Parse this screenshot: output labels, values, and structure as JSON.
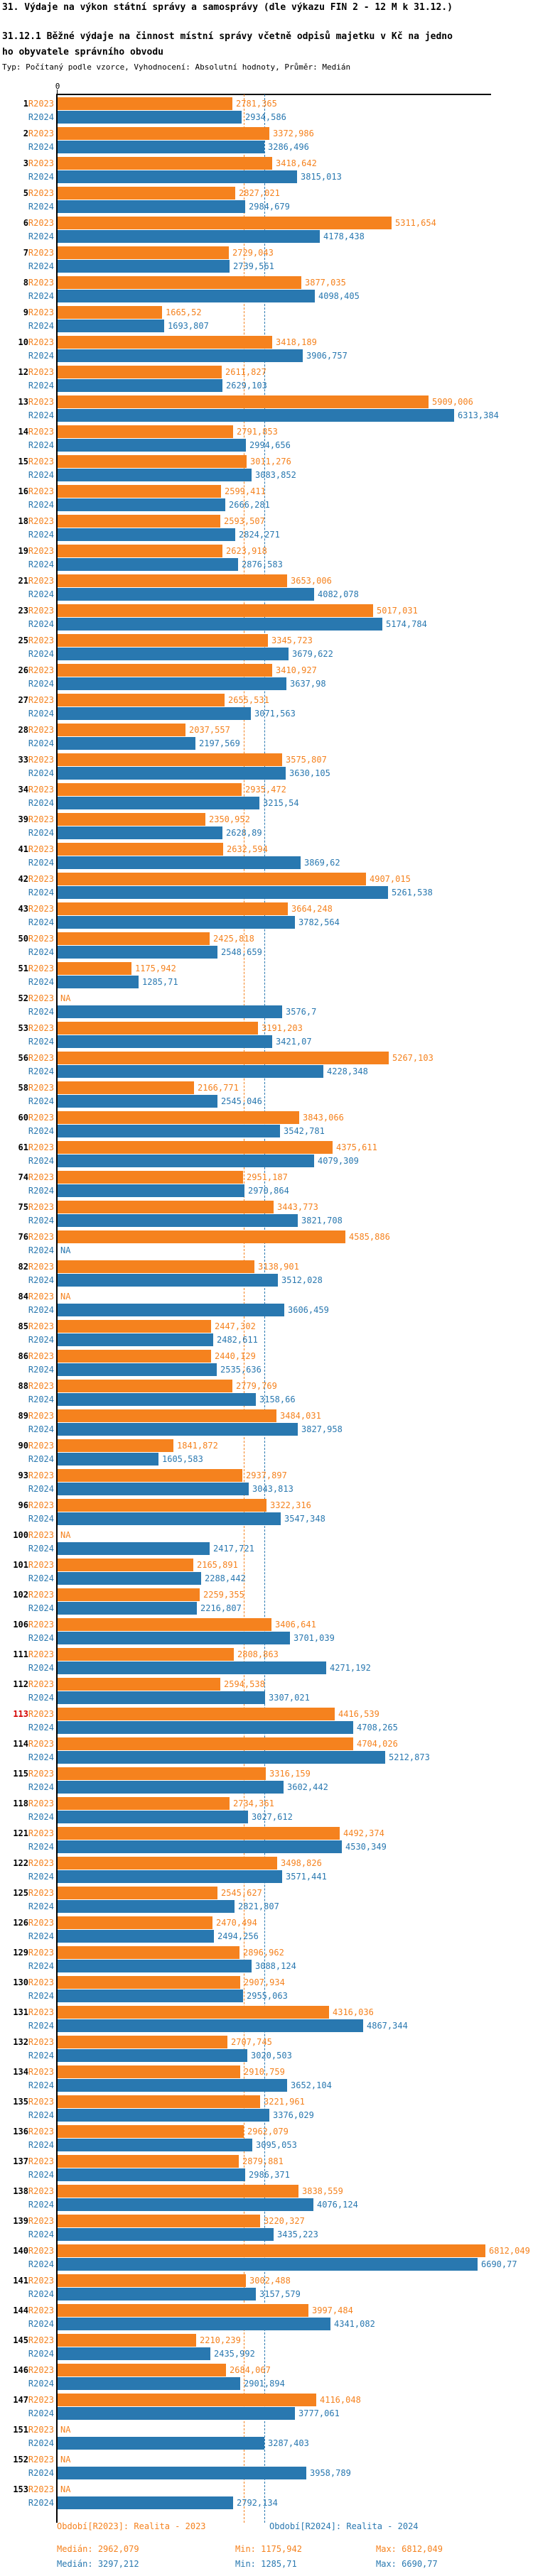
{
  "header": {
    "title": "31. Výdaje na výkon státní správy a samosprávy (dle výkazu FIN 2 - 12 M k 31.12.)",
    "subtitle_line1": "31.12.1 Běžné výdaje na činnost místní správy včetně odpisů majetku v Kč na jedno",
    "subtitle_line2": "ho obyvatele správního obvodu",
    "type_line": "Typ: Počítaný podle vzorce, Vyhodnocení: Absolutní hodnoty, Průměr: Medián"
  },
  "colors": {
    "r2023": "#f5821e",
    "r2024": "#2978b0",
    "highlight_index": "#d40000",
    "axis": "#000000"
  },
  "legend": {
    "r2023": "Období[R2023]: Realita - 2023",
    "r2024": "Období[R2024]: Realita - 2024"
  },
  "stats": {
    "r2023": {
      "median_label": "Medián:",
      "median": "2962,079",
      "min_label": "Min:",
      "min": "1175,942",
      "max_label": "Max:",
      "max": "6812,049"
    },
    "r2024": {
      "median_label": "Medián:",
      "median": "3297,212",
      "min_label": "Min:",
      "min": "1285,71",
      "max_label": "Max:",
      "max": "6690,77"
    }
  },
  "chart_data": {
    "type": "bar",
    "orientation": "horizontal",
    "zero_label": "0",
    "na_label": "NA",
    "highlighted_row": "113",
    "series": [
      {
        "name": "R2023",
        "label": "Realita - 2023"
      },
      {
        "name": "R2024",
        "label": "Realita - 2024"
      }
    ],
    "summary": {
      "r2023": {
        "median": 2962.079,
        "min": 1175.942,
        "max": 6812.049
      },
      "r2024": {
        "median": 3297.212,
        "min": 1285.71,
        "max": 6690.77
      }
    },
    "rows": [
      {
        "id": "1",
        "r2023": "2781,365",
        "r2024": "2934,586"
      },
      {
        "id": "2",
        "r2023": "3372,986",
        "r2024": "3286,496"
      },
      {
        "id": "3",
        "r2023": "3418,642",
        "r2024": "3815,013"
      },
      {
        "id": "5",
        "r2023": "2827,021",
        "r2024": "2984,679"
      },
      {
        "id": "6",
        "r2023": "5311,654",
        "r2024": "4178,438"
      },
      {
        "id": "7",
        "r2023": "2729,043",
        "r2024": "2739,561"
      },
      {
        "id": "8",
        "r2023": "3877,035",
        "r2024": "4098,405"
      },
      {
        "id": "9",
        "r2023": "1665,52",
        "r2024": "1693,807"
      },
      {
        "id": "10",
        "r2023": "3418,189",
        "r2024": "3906,757"
      },
      {
        "id": "12",
        "r2023": "2611,827",
        "r2024": "2629,103"
      },
      {
        "id": "13",
        "r2023": "5909,006",
        "r2024": "6313,384"
      },
      {
        "id": "14",
        "r2023": "2791,853",
        "r2024": "2994,656"
      },
      {
        "id": "15",
        "r2023": "3011,276",
        "r2024": "3083,852"
      },
      {
        "id": "16",
        "r2023": "2599,411",
        "r2024": "2666,281"
      },
      {
        "id": "18",
        "r2023": "2593,507",
        "r2024": "2824,271"
      },
      {
        "id": "19",
        "r2023": "2623,918",
        "r2024": "2876,583"
      },
      {
        "id": "21",
        "r2023": "3653,006",
        "r2024": "4082,078"
      },
      {
        "id": "23",
        "r2023": "5017,031",
        "r2024": "5174,784"
      },
      {
        "id": "25",
        "r2023": "3345,723",
        "r2024": "3679,622"
      },
      {
        "id": "26",
        "r2023": "3410,927",
        "r2024": "3637,98"
      },
      {
        "id": "27",
        "r2023": "2655,531",
        "r2024": "3071,563"
      },
      {
        "id": "28",
        "r2023": "2037,557",
        "r2024": "2197,569"
      },
      {
        "id": "33",
        "r2023": "3575,807",
        "r2024": "3630,105"
      },
      {
        "id": "34",
        "r2023": "2935,472",
        "r2024": "3215,54"
      },
      {
        "id": "39",
        "r2023": "2350,952",
        "r2024": "2628,89"
      },
      {
        "id": "41",
        "r2023": "2632,594",
        "r2024": "3869,62"
      },
      {
        "id": "42",
        "r2023": "4907,015",
        "r2024": "5261,538"
      },
      {
        "id": "43",
        "r2023": "3664,248",
        "r2024": "3782,564"
      },
      {
        "id": "50",
        "r2023": "2425,818",
        "r2024": "2548,659"
      },
      {
        "id": "51",
        "r2023": "1175,942",
        "r2024": "1285,71"
      },
      {
        "id": "52",
        "r2023": null,
        "r2024": "3576,7"
      },
      {
        "id": "53",
        "r2023": "3191,203",
        "r2024": "3421,07"
      },
      {
        "id": "56",
        "r2023": "5267,103",
        "r2024": "4228,348"
      },
      {
        "id": "58",
        "r2023": "2166,771",
        "r2024": "2545,046"
      },
      {
        "id": "60",
        "r2023": "3843,066",
        "r2024": "3542,781"
      },
      {
        "id": "61",
        "r2023": "4375,611",
        "r2024": "4079,309"
      },
      {
        "id": "74",
        "r2023": "2951,187",
        "r2024": "2970,864"
      },
      {
        "id": "75",
        "r2023": "3443,773",
        "r2024": "3821,708"
      },
      {
        "id": "76",
        "r2023": "4585,886",
        "r2024": null
      },
      {
        "id": "82",
        "r2023": "3138,901",
        "r2024": "3512,028"
      },
      {
        "id": "84",
        "r2023": null,
        "r2024": "3606,459"
      },
      {
        "id": "85",
        "r2023": "2447,302",
        "r2024": "2482,611"
      },
      {
        "id": "86",
        "r2023": "2440,129",
        "r2024": "2535,636"
      },
      {
        "id": "88",
        "r2023": "2779,769",
        "r2024": "3158,66"
      },
      {
        "id": "89",
        "r2023": "3484,031",
        "r2024": "3827,958"
      },
      {
        "id": "90",
        "r2023": "1841,872",
        "r2024": "1605,583"
      },
      {
        "id": "93",
        "r2023": "2937,897",
        "r2024": "3043,813"
      },
      {
        "id": "96",
        "r2023": "3322,316",
        "r2024": "3547,348"
      },
      {
        "id": "100",
        "r2023": null,
        "r2024": "2417,721"
      },
      {
        "id": "101",
        "r2023": "2165,891",
        "r2024": "2288,442"
      },
      {
        "id": "102",
        "r2023": "2259,355",
        "r2024": "2216,807"
      },
      {
        "id": "106",
        "r2023": "3406,641",
        "r2024": "3701,039"
      },
      {
        "id": "111",
        "r2023": "2808,863",
        "r2024": "4271,192"
      },
      {
        "id": "112",
        "r2023": "2594,538",
        "r2024": "3307,021"
      },
      {
        "id": "113",
        "r2023": "4416,539",
        "r2024": "4708,265"
      },
      {
        "id": "114",
        "r2023": "4704,026",
        "r2024": "5212,873"
      },
      {
        "id": "115",
        "r2023": "3316,159",
        "r2024": "3602,442"
      },
      {
        "id": "118",
        "r2023": "2734,361",
        "r2024": "3027,612"
      },
      {
        "id": "121",
        "r2023": "4492,374",
        "r2024": "4530,349"
      },
      {
        "id": "122",
        "r2023": "3498,826",
        "r2024": "3571,441"
      },
      {
        "id": "125",
        "r2023": "2545,627",
        "r2024": "2821,807"
      },
      {
        "id": "126",
        "r2023": "2470,494",
        "r2024": "2494,256"
      },
      {
        "id": "129",
        "r2023": "2896,962",
        "r2024": "3088,124"
      },
      {
        "id": "130",
        "r2023": "2907,934",
        "r2024": "2955,063"
      },
      {
        "id": "131",
        "r2023": "4316,036",
        "r2024": "4867,344"
      },
      {
        "id": "132",
        "r2023": "2707,745",
        "r2024": "3020,503"
      },
      {
        "id": "134",
        "r2023": "2910,759",
        "r2024": "3652,104"
      },
      {
        "id": "135",
        "r2023": "3221,961",
        "r2024": "3376,029"
      },
      {
        "id": "136",
        "r2023": "2962,079",
        "r2024": "3095,053"
      },
      {
        "id": "137",
        "r2023": "2879,881",
        "r2024": "2986,371"
      },
      {
        "id": "138",
        "r2023": "3838,559",
        "r2024": "4076,124"
      },
      {
        "id": "139",
        "r2023": "3220,327",
        "r2024": "3435,223"
      },
      {
        "id": "140",
        "r2023": "6812,049",
        "r2024": "6690,77"
      },
      {
        "id": "141",
        "r2023": "3002,488",
        "r2024": "3157,579"
      },
      {
        "id": "144",
        "r2023": "3997,484",
        "r2024": "4341,082"
      },
      {
        "id": "145",
        "r2023": "2210,239",
        "r2024": "2435,992"
      },
      {
        "id": "146",
        "r2023": "2684,067",
        "r2024": "2901,894"
      },
      {
        "id": "147",
        "r2023": "4116,048",
        "r2024": "3777,061"
      },
      {
        "id": "151",
        "r2023": null,
        "r2024": "3287,403"
      },
      {
        "id": "152",
        "r2023": null,
        "r2024": "3958,789"
      },
      {
        "id": "153",
        "r2023": null,
        "r2024": "2792,134"
      }
    ]
  }
}
